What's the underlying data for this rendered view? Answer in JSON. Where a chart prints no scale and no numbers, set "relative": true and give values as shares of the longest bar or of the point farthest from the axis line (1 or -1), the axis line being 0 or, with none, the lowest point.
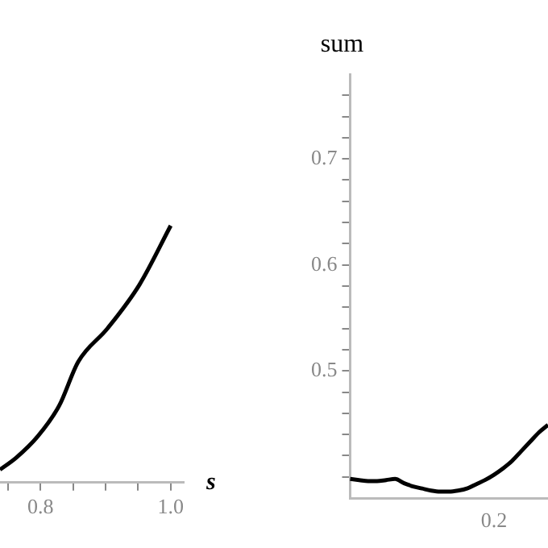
{
  "chart_data": [
    {
      "type": "line",
      "xlabel": "s",
      "relative": true,
      "tick_labels": "x",
      "color": "#000000",
      "marker": "none",
      "xlim": [
        0.738,
        1.02
      ],
      "xticks": [
        {
          "value": 0.75,
          "label": null
        },
        {
          "value": 0.8,
          "label": "0.8"
        },
        {
          "value": 0.85,
          "label": null
        },
        {
          "value": 0.9,
          "label": null
        },
        {
          "value": 0.95,
          "label": null
        },
        {
          "value": 1,
          "label": "1.0"
        }
      ],
      "x": [
        0.738,
        0.763,
        0.796,
        0.829,
        0.858,
        0.903,
        0.952,
        1.0
      ],
      "values": [
        0.05,
        0.097,
        0.18,
        0.3,
        0.47,
        0.6,
        0.77,
        1.0
      ]
    },
    {
      "type": "line",
      "ylabel": "sum",
      "color": "#000000",
      "marker": "none",
      "tick_labels": "y",
      "ylim": [
        0.38,
        0.78
      ],
      "annotations": [
        "0.2"
      ],
      "yticks": [
        {
          "value": 0.4,
          "label": null
        },
        {
          "value": 0.42,
          "label": null
        },
        {
          "value": 0.44,
          "label": null
        },
        {
          "value": 0.46,
          "label": null
        },
        {
          "value": 0.48,
          "label": null
        },
        0.5,
        {
          "value": 0.52,
          "label": null
        },
        {
          "value": 0.54,
          "label": null
        },
        {
          "value": 0.56,
          "label": null
        },
        {
          "value": 0.58,
          "label": null
        },
        0.6,
        {
          "value": 0.62,
          "label": null
        },
        {
          "value": 0.64,
          "label": null
        },
        {
          "value": 0.66,
          "label": null
        },
        {
          "value": 0.68,
          "label": null
        },
        0.7,
        {
          "value": 0.72,
          "label": null
        },
        {
          "value": 0.74,
          "label": null
        },
        {
          "value": 0.76,
          "label": null
        }
      ],
      "categories": [
        null,
        null,
        null,
        null,
        null,
        null,
        null,
        null,
        null,
        null,
        null,
        null,
        null,
        null,
        null,
        null,
        null,
        null,
        null,
        null,
        null,
        null,
        null
      ],
      "values": [
        0.398,
        0.397,
        0.396,
        0.396,
        0.397,
        0.398,
        0.394,
        0.391,
        0.389,
        0.387,
        0.386,
        0.386,
        0.387,
        0.389,
        0.393,
        0.397,
        0.402,
        0.408,
        0.415,
        0.424,
        0.433,
        0.442,
        0.449
      ]
    }
  ]
}
